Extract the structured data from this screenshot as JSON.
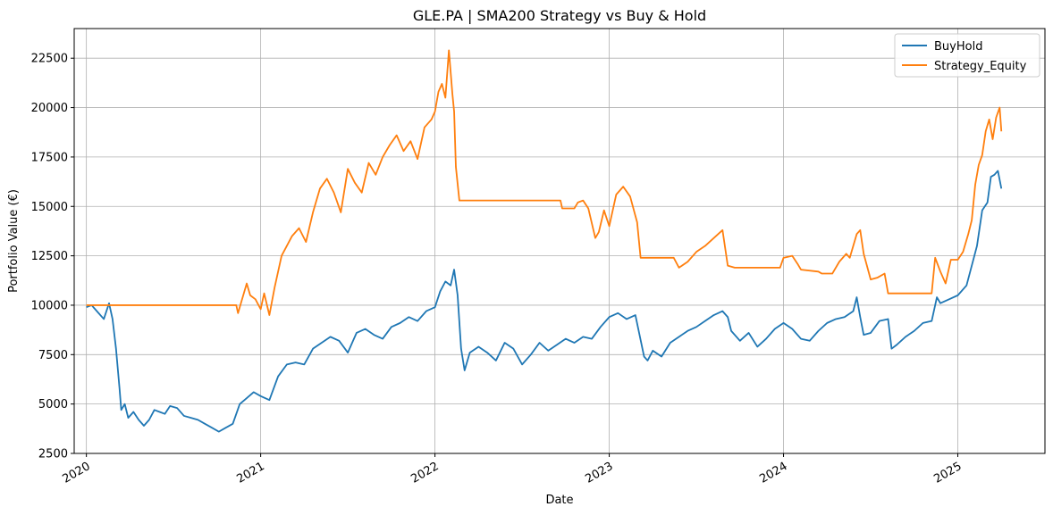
{
  "chart_data": {
    "type": "line",
    "title": "GLE.PA | SMA200 Strategy vs Buy & Hold",
    "xlabel": "Date",
    "ylabel": "Portfolio Value (€)",
    "xlim": [
      2019.93,
      2025.5
    ],
    "ylim": [
      2500,
      24000
    ],
    "grid": true,
    "legend_position": "top-right",
    "x_ticks": [
      2020,
      2021,
      2022,
      2023,
      2024,
      2025
    ],
    "x_tick_labels": [
      "2020",
      "2021",
      "2022",
      "2023",
      "2024",
      "2025"
    ],
    "y_ticks": [
      2500,
      5000,
      7500,
      10000,
      12500,
      15000,
      17500,
      20000,
      22500
    ],
    "y_tick_labels": [
      "2500",
      "5000",
      "7500",
      "10000",
      "12500",
      "15000",
      "17500",
      "20000",
      "22500"
    ],
    "series": [
      {
        "name": "BuyHold",
        "color": "#1f77b4",
        "x": [
          2020.0,
          2020.03,
          2020.06,
          2020.1,
          2020.13,
          2020.15,
          2020.17,
          2020.19,
          2020.2,
          2020.22,
          2020.24,
          2020.27,
          2020.3,
          2020.33,
          2020.36,
          2020.39,
          2020.42,
          2020.45,
          2020.48,
          2020.52,
          2020.56,
          2020.6,
          2020.64,
          2020.68,
          2020.72,
          2020.76,
          2020.8,
          2020.84,
          2020.88,
          2020.92,
          2020.96,
          2021.0,
          2021.05,
          2021.1,
          2021.15,
          2021.2,
          2021.25,
          2021.3,
          2021.35,
          2021.4,
          2021.45,
          2021.5,
          2021.55,
          2021.6,
          2021.65,
          2021.7,
          2021.75,
          2021.8,
          2021.85,
          2021.9,
          2021.95,
          2022.0,
          2022.03,
          2022.06,
          2022.09,
          2022.11,
          2022.13,
          2022.15,
          2022.17,
          2022.2,
          2022.25,
          2022.3,
          2022.35,
          2022.4,
          2022.45,
          2022.5,
          2022.55,
          2022.6,
          2022.65,
          2022.7,
          2022.75,
          2022.8,
          2022.85,
          2022.9,
          2022.95,
          2023.0,
          2023.05,
          2023.1,
          2023.15,
          2023.2,
          2023.22,
          2023.25,
          2023.3,
          2023.35,
          2023.4,
          2023.45,
          2023.5,
          2023.55,
          2023.6,
          2023.65,
          2023.68,
          2023.7,
          2023.75,
          2023.8,
          2023.85,
          2023.9,
          2023.95,
          2024.0,
          2024.05,
          2024.1,
          2024.15,
          2024.2,
          2024.25,
          2024.3,
          2024.35,
          2024.4,
          2024.42,
          2024.44,
          2024.46,
          2024.5,
          2024.55,
          2024.6,
          2024.62,
          2024.65,
          2024.7,
          2024.75,
          2024.8,
          2024.85,
          2024.88,
          2024.9,
          2024.95,
          2025.0,
          2025.05,
          2025.08,
          2025.11,
          2025.14,
          2025.17,
          2025.19,
          2025.21,
          2025.23,
          2025.25
        ],
        "values": [
          9900,
          10000,
          9700,
          9300,
          10100,
          9300,
          7800,
          5800,
          4700,
          5000,
          4300,
          4600,
          4200,
          3900,
          4200,
          4700,
          4600,
          4500,
          4900,
          4800,
          4400,
          4300,
          4200,
          4000,
          3800,
          3600,
          3800,
          4000,
          5000,
          5300,
          5600,
          5400,
          5200,
          6400,
          7000,
          7100,
          7000,
          7800,
          8100,
          8400,
          8200,
          7600,
          8600,
          8800,
          8500,
          8300,
          8900,
          9100,
          9400,
          9200,
          9700,
          9900,
          10700,
          11200,
          11000,
          11800,
          10500,
          7800,
          6700,
          7600,
          7900,
          7600,
          7200,
          8100,
          7800,
          7000,
          7500,
          8100,
          7700,
          8000,
          8300,
          8100,
          8400,
          8300,
          8900,
          9400,
          9600,
          9300,
          9500,
          7400,
          7200,
          7700,
          7400,
          8100,
          8400,
          8700,
          8900,
          9200,
          9500,
          9700,
          9400,
          8700,
          8200,
          8600,
          7900,
          8300,
          8800,
          9100,
          8800,
          8300,
          8200,
          8700,
          9100,
          9300,
          9400,
          9700,
          10400,
          9400,
          8500,
          8600,
          9200,
          9300,
          7800,
          8000,
          8400,
          8700,
          9100,
          9200,
          10400,
          10100,
          10300,
          10500,
          11000,
          12000,
          13000,
          14800,
          15200,
          16500,
          16600,
          16800,
          15900
        ]
      },
      {
        "name": "Strategy_Equity",
        "color": "#ff7f0e",
        "x": [
          2020.0,
          2020.3,
          2020.6,
          2020.86,
          2020.87,
          2020.89,
          2020.92,
          2020.94,
          2020.97,
          2021.0,
          2021.02,
          2021.05,
          2021.08,
          2021.12,
          2021.18,
          2021.22,
          2021.26,
          2021.3,
          2021.34,
          2021.38,
          2021.42,
          2021.46,
          2021.5,
          2021.54,
          2021.58,
          2021.62,
          2021.66,
          2021.7,
          2021.74,
          2021.78,
          2021.82,
          2021.86,
          2021.9,
          2021.94,
          2021.98,
          2022.0,
          2022.02,
          2022.04,
          2022.06,
          2022.08,
          2022.1,
          2022.11,
          2022.12,
          2022.14,
          2022.15,
          2022.17,
          2022.72,
          2022.73,
          2022.8,
          2022.82,
          2022.85,
          2022.88,
          2022.92,
          2022.94,
          2022.97,
          2023.0,
          2023.04,
          2023.08,
          2023.12,
          2023.16,
          2023.18,
          2023.19,
          2023.37,
          2023.4,
          2023.45,
          2023.5,
          2023.55,
          2023.6,
          2023.65,
          2023.68,
          2023.72,
          2023.75,
          2023.98,
          2024.0,
          2024.05,
          2024.08,
          2024.1,
          2024.2,
          2024.22,
          2024.28,
          2024.32,
          2024.36,
          2024.38,
          2024.42,
          2024.44,
          2024.46,
          2024.5,
          2024.54,
          2024.58,
          2024.6,
          2024.85,
          2024.87,
          2024.9,
          2024.93,
          2024.96,
          2025.0,
          2025.03,
          2025.06,
          2025.08,
          2025.1,
          2025.12,
          2025.14,
          2025.16,
          2025.18,
          2025.2,
          2025.22,
          2025.24,
          2025.25
        ],
        "values": [
          10000,
          10000,
          10000,
          10000,
          9600,
          10200,
          11100,
          10500,
          10300,
          9800,
          10600,
          9500,
          10900,
          12500,
          13500,
          13900,
          13200,
          14700,
          15900,
          16400,
          15700,
          14700,
          16900,
          16200,
          15700,
          17200,
          16600,
          17500,
          18100,
          18600,
          17800,
          18300,
          17400,
          19000,
          19400,
          19800,
          20800,
          21200,
          20500,
          22900,
          20700,
          19800,
          17000,
          15300,
          15300,
          15300,
          15300,
          14900,
          14900,
          15200,
          15300,
          14900,
          13400,
          13700,
          14800,
          14000,
          15600,
          16000,
          15500,
          14200,
          12400,
          12400,
          12400,
          11900,
          12200,
          12700,
          13000,
          13400,
          13800,
          12000,
          11900,
          11900,
          11900,
          12400,
          12500,
          12100,
          11800,
          11700,
          11600,
          11600,
          12200,
          12600,
          12400,
          13600,
          13800,
          12600,
          11300,
          11400,
          11600,
          10600,
          10600,
          12400,
          11700,
          11100,
          12300,
          12300,
          12700,
          13600,
          14300,
          16100,
          17100,
          17600,
          18800,
          19400,
          18400,
          19500,
          20000,
          18800
        ]
      }
    ]
  }
}
